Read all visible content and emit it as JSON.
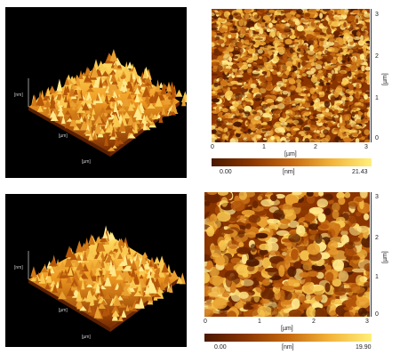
{
  "colors": {
    "afm_dark": "#5a1f00",
    "afm_mid": "#c96a10",
    "afm_light": "#ffe06a",
    "panel_bg": "#000000"
  },
  "panels": [
    {
      "kind": "3d-surface",
      "axis_labels": {
        "x": "[µm]",
        "y": "[µm]",
        "z": "[nm]"
      }
    },
    {
      "kind": "2d-map",
      "x_ticks": [
        "0",
        "1",
        "2",
        "3"
      ],
      "y_ticks": [
        "0",
        "1",
        "2",
        "3"
      ],
      "x_unit": "[µm]",
      "y_unit": "[µm]",
      "colorbar": {
        "min": "0.00",
        "unit": "[nm]",
        "max": "21.43"
      }
    },
    {
      "kind": "3d-surface",
      "axis_labels": {
        "x": "[µm]",
        "y": "[µm]",
        "z": "[nm]"
      }
    },
    {
      "kind": "2d-map",
      "x_ticks": [
        "0",
        "1",
        "2",
        "3"
      ],
      "y_ticks": [
        "0",
        "1",
        "2",
        "3"
      ],
      "x_unit": "[µm]",
      "y_unit": "[µm]",
      "colorbar": {
        "min": "0.00",
        "unit": "[nm]",
        "max": "19.90"
      }
    }
  ]
}
